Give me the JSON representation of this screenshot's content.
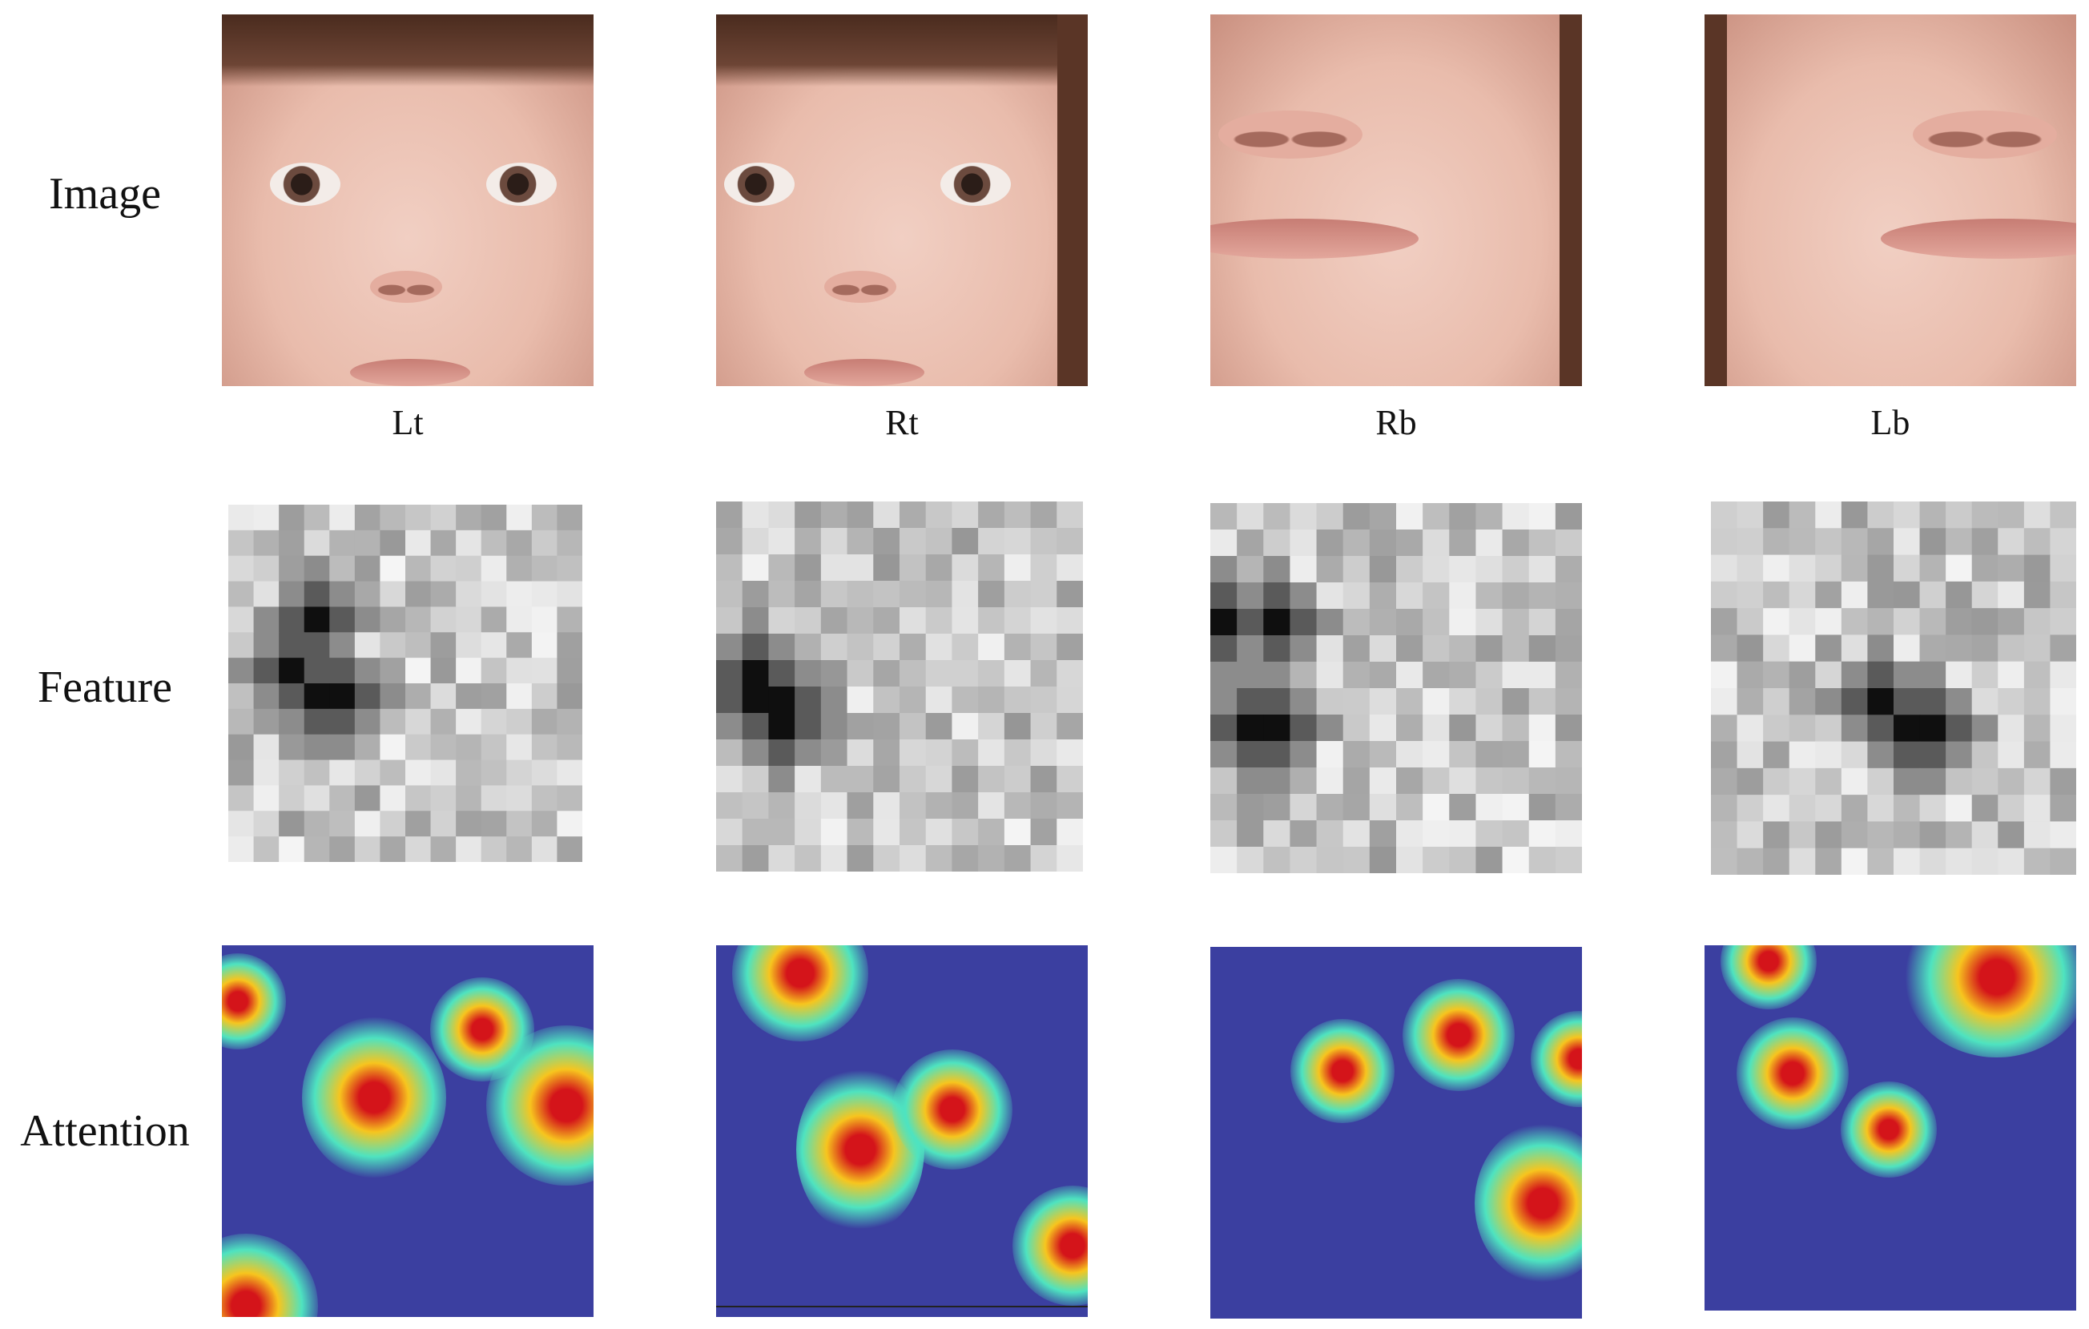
{
  "rows": {
    "image": "Image",
    "feature": "Feature",
    "attention": "Attention"
  },
  "columns": [
    "Lt",
    "Rt",
    "Rb",
    "Lb"
  ]
}
